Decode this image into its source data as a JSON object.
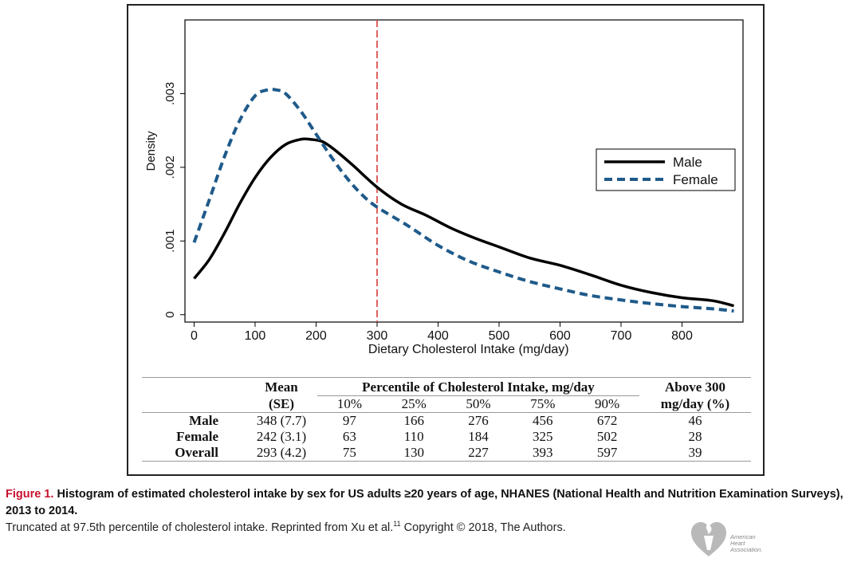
{
  "chart_data": {
    "type": "line",
    "title": "",
    "xlabel": "Dietary Cholesterol Intake (mg/day)",
    "ylabel": "Density",
    "xlim": [
      -15,
      900
    ],
    "ylim": [
      -0.0001,
      0.004
    ],
    "x_ticks": [
      0,
      100,
      200,
      300,
      400,
      500,
      600,
      700,
      800
    ],
    "y_ticks": [
      0,
      0.001,
      0.002,
      0.003
    ],
    "y_tick_labels": [
      "0",
      ".001",
      ".002",
      ".003"
    ],
    "reference_line": {
      "x": 300,
      "color": "#d9534f",
      "style": "dashed"
    },
    "legend_position": "right",
    "series": [
      {
        "name": "Male",
        "color": "#000000",
        "style": "solid",
        "x": [
          0,
          25,
          50,
          75,
          100,
          125,
          150,
          175,
          190,
          210,
          230,
          260,
          300,
          340,
          380,
          420,
          460,
          500,
          550,
          600,
          650,
          700,
          750,
          800,
          850,
          885
        ],
        "y": [
          0.00049,
          0.00075,
          0.00111,
          0.00151,
          0.00186,
          0.00213,
          0.00231,
          0.00238,
          0.00238,
          0.00235,
          0.00224,
          0.00203,
          0.00173,
          0.0015,
          0.00135,
          0.00118,
          0.00104,
          0.00092,
          0.00077,
          0.00067,
          0.00054,
          0.0004,
          0.0003,
          0.00023,
          0.00019,
          0.00012
        ]
      },
      {
        "name": "Female",
        "color": "#1f5a8a",
        "style": "dashed",
        "x": [
          0,
          25,
          50,
          75,
          100,
          120,
          135,
          150,
          175,
          200,
          225,
          250,
          275,
          300,
          350,
          400,
          450,
          500,
          550,
          600,
          650,
          700,
          750,
          800,
          850,
          885
        ],
        "y": [
          0.00098,
          0.00156,
          0.00215,
          0.00264,
          0.00297,
          0.00305,
          0.00305,
          0.003,
          0.00276,
          0.00245,
          0.00214,
          0.00186,
          0.00163,
          0.00146,
          0.00121,
          0.00094,
          0.00073,
          0.00058,
          0.00045,
          0.00035,
          0.00026,
          0.0002,
          0.00015,
          0.00011,
          8e-05,
          5e-05
        ]
      }
    ]
  },
  "table": {
    "col_mean_line1": "Mean",
    "col_mean_line2": "(SE)",
    "col_percentile_group": "Percentile of Cholesterol Intake, mg/day",
    "col_above_line1": "Above 300",
    "col_above_line2": "mg/day (%)",
    "percentile_headers": [
      "10%",
      "25%",
      "50%",
      "75%",
      "90%"
    ],
    "rows": [
      {
        "label": "Male",
        "mean": "348 (7.7)",
        "p10": "97",
        "p25": "166",
        "p50": "276",
        "p75": "456",
        "p90": "672",
        "above": "46"
      },
      {
        "label": "Female",
        "mean": "242 (3.1)",
        "p10": "63",
        "p25": "110",
        "p50": "184",
        "p75": "325",
        "p90": "502",
        "above": "28"
      },
      {
        "label": "Overall",
        "mean": "293 (4.2)",
        "p10": "75",
        "p25": "130",
        "p50": "227",
        "p75": "393",
        "p90": "597",
        "above": "39"
      }
    ]
  },
  "caption": {
    "label": "Figure 1.",
    "title": "Histogram of estimated cholesterol intake by sex for US adults ≥20 years of age, NHANES (National Health and Nutrition Examination Surveys), 2013 to 2014.",
    "note": "Truncated at 97.5th percentile of cholesterol intake. Reprinted from Xu et al.",
    "note_ref": "11",
    "note_tail": " Copyright © 2018, The Authors."
  },
  "logo": {
    "line1": "American",
    "line2": "Heart",
    "line3": "Association."
  }
}
